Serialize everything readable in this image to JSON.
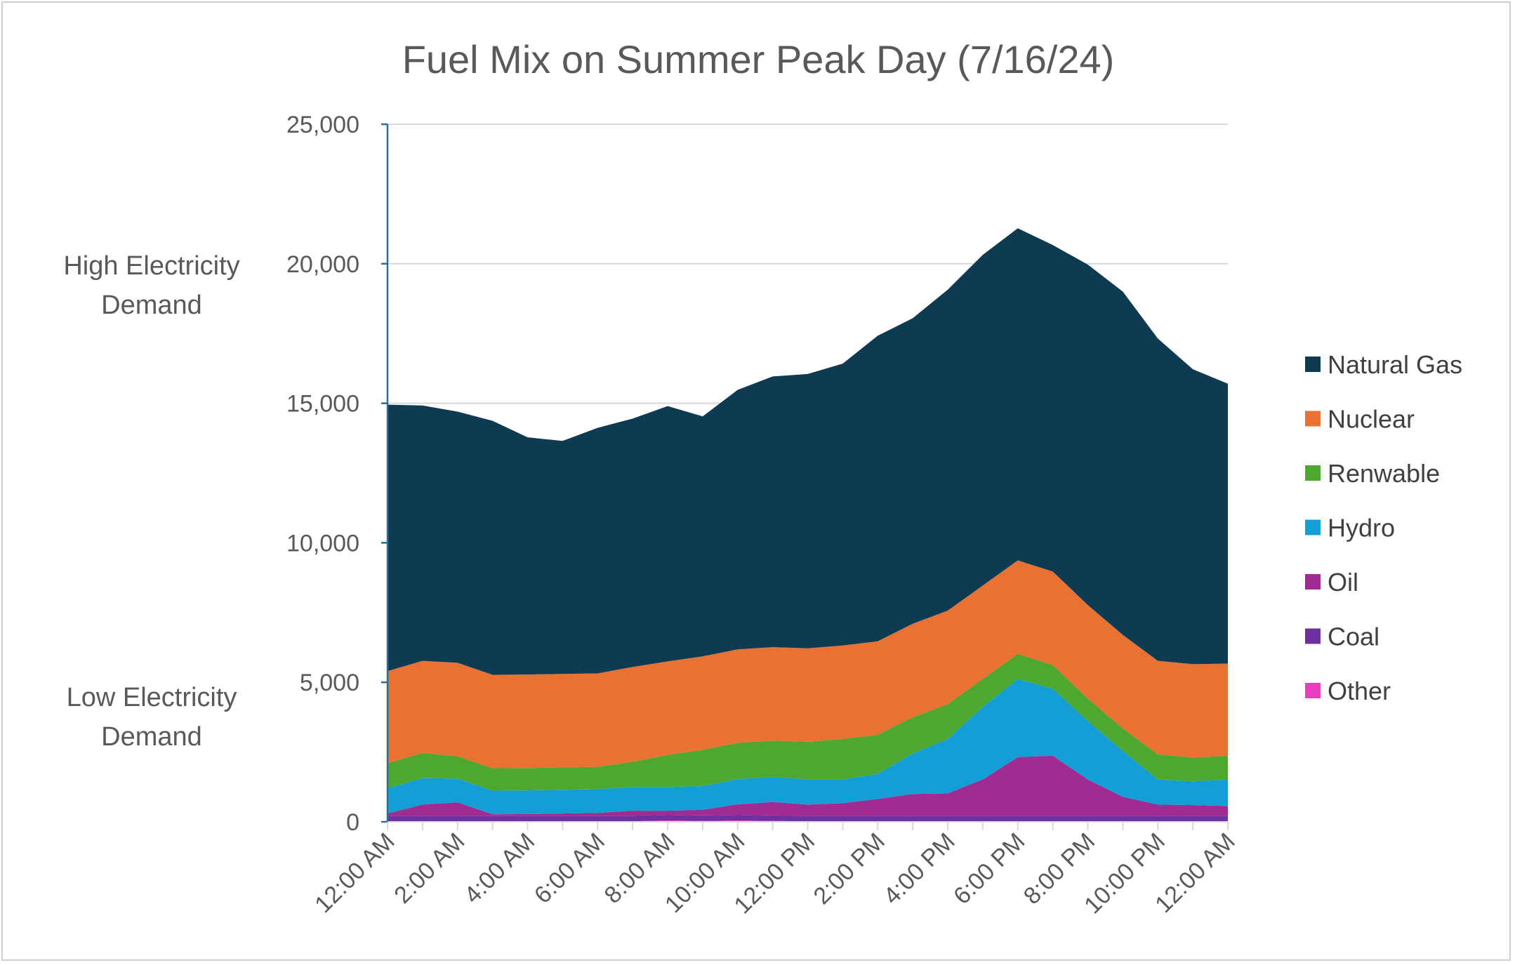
{
  "chart_data": {
    "type": "area",
    "stacked": true,
    "title": "Fuel Mix on Summer Peak Day (7/16/24)",
    "xlabel": "",
    "ylabel": "",
    "ylim": [
      0,
      25000
    ],
    "yticks": [
      0,
      5000,
      10000,
      15000,
      20000,
      25000
    ],
    "ytick_labels": [
      "0",
      "5,000",
      "10,000",
      "15,000",
      "20,000",
      "25,000"
    ],
    "grid": true,
    "legend": "right",
    "side_labels": {
      "high": [
        "High Electricity",
        "Demand"
      ],
      "low": [
        "Low Electricity",
        "Demand"
      ]
    },
    "x": [
      "12:00 AM",
      "1:00 AM",
      "2:00 AM",
      "3:00 AM",
      "4:00 AM",
      "5:00 AM",
      "6:00 AM",
      "7:00 AM",
      "8:00 AM",
      "9:00 AM",
      "10:00 AM",
      "11:00 AM",
      "12:00 PM",
      "1:00 PM",
      "2:00 PM",
      "3:00 PM",
      "4:00 PM",
      "5:00 PM",
      "6:00 PM",
      "7:00 PM",
      "8:00 PM",
      "9:00 PM",
      "10:00 PM",
      "11:00 PM",
      "12:00 AM"
    ],
    "xtick_labels": [
      "12:00 AM",
      "2:00 AM",
      "4:00 AM",
      "6:00 AM",
      "8:00 AM",
      "10:00 AM",
      "12:00 PM",
      "2:00 PM",
      "4:00 PM",
      "6:00 PM",
      "8:00 PM",
      "10:00 PM",
      "12:00 AM"
    ],
    "series": [
      {
        "name": "Other",
        "color": "#e83fbf",
        "values": [
          20,
          20,
          20,
          20,
          20,
          20,
          20,
          20,
          50,
          30,
          50,
          30,
          20,
          20,
          20,
          20,
          20,
          20,
          20,
          20,
          20,
          20,
          20,
          20,
          20
        ]
      },
      {
        "name": "Coal",
        "color": "#7030a0",
        "values": [
          200,
          200,
          200,
          200,
          200,
          200,
          200,
          200,
          200,
          200,
          200,
          200,
          200,
          200,
          200,
          200,
          200,
          200,
          200,
          200,
          200,
          200,
          200,
          200,
          200
        ]
      },
      {
        "name": "Oil",
        "color": "#a02b93",
        "values": [
          80,
          400,
          480,
          50,
          60,
          80,
          100,
          180,
          150,
          200,
          380,
          480,
          400,
          450,
          600,
          780,
          800,
          1300,
          2100,
          2150,
          1300,
          680,
          400,
          380,
          350
        ]
      },
      {
        "name": "Hydro",
        "color": "#139fd6",
        "values": [
          900,
          950,
          850,
          850,
          850,
          850,
          850,
          850,
          850,
          850,
          900,
          900,
          900,
          850,
          900,
          1450,
          1950,
          2600,
          2800,
          2400,
          2100,
          1650,
          900,
          850,
          950
        ]
      },
      {
        "name": "Renwable",
        "color": "#4ea72e",
        "values": [
          900,
          900,
          800,
          800,
          800,
          800,
          800,
          900,
          1150,
          1300,
          1300,
          1300,
          1350,
          1450,
          1400,
          1300,
          1250,
          1000,
          900,
          850,
          800,
          800,
          900,
          850,
          850
        ]
      },
      {
        "name": "Nuclear",
        "color": "#e97132",
        "values": [
          3300,
          3300,
          3350,
          3350,
          3350,
          3350,
          3350,
          3400,
          3350,
          3350,
          3350,
          3350,
          3350,
          3350,
          3350,
          3350,
          3350,
          3350,
          3350,
          3350,
          3350,
          3350,
          3350,
          3350,
          3300
        ]
      },
      {
        "name": "Natural Gas",
        "color": "#0e3a52",
        "values": [
          9550,
          9150,
          9000,
          9100,
          8500,
          8350,
          8800,
          8900,
          9150,
          8600,
          9300,
          9700,
          9830,
          10100,
          10950,
          10950,
          11500,
          11850,
          11900,
          11700,
          12200,
          12300,
          11550,
          10570,
          10030
        ]
      }
    ],
    "legend_order": [
      "Natural Gas",
      "Nuclear",
      "Renwable",
      "Hydro",
      "Oil",
      "Coal",
      "Other"
    ]
  }
}
